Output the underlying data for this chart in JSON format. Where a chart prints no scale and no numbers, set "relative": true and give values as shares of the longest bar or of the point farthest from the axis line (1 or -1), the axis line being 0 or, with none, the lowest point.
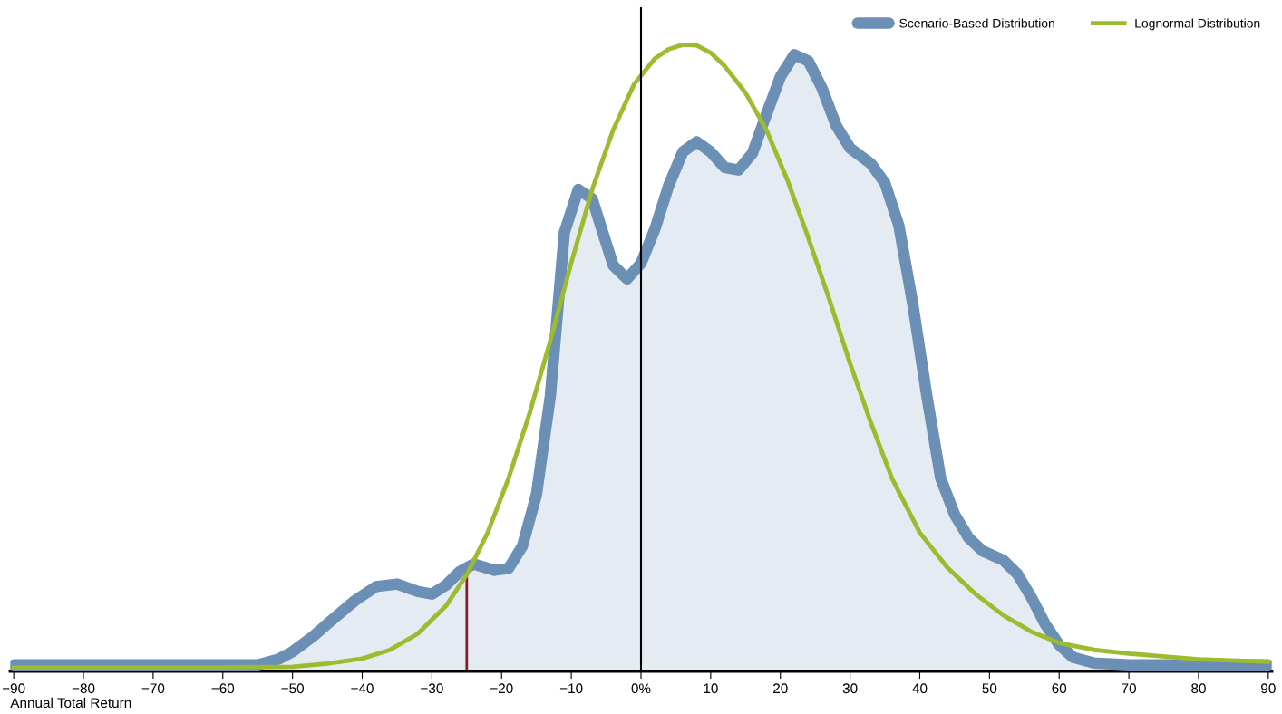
{
  "chart_data": {
    "type": "area",
    "relative": true,
    "xlabel": "Annual Total Return",
    "xlim": [
      -90.5,
      90.5
    ],
    "xticks": [
      {
        "value": -90,
        "label": "−90"
      },
      {
        "value": -80,
        "label": "−80"
      },
      {
        "value": -70,
        "label": "−70"
      },
      {
        "value": -60,
        "label": "−60"
      },
      {
        "value": -50,
        "label": "−50"
      },
      {
        "value": -40,
        "label": "−40"
      },
      {
        "value": -30,
        "label": "−30"
      },
      {
        "value": -20,
        "label": "−20"
      },
      {
        "value": -10,
        "label": "−10"
      },
      {
        "value": 0,
        "label": "0%"
      },
      10,
      20,
      30,
      40,
      50,
      60,
      70,
      80,
      90
    ],
    "grid": false,
    "legend": "top right",
    "ref_lines": [
      {
        "axis": "x",
        "value": 0,
        "color": "#000000"
      },
      {
        "axis": "x",
        "value": -25,
        "color": "#8b1a2e"
      }
    ],
    "series": [
      {
        "name": "Scenario-Based Distribution",
        "color": "#6b8fb5",
        "x": [
          -90,
          -55,
          -52,
          -50,
          -47,
          -44,
          -41,
          -38,
          -35,
          -32,
          -30,
          -28,
          -26,
          -24,
          -21,
          -19,
          -17,
          -15,
          -13,
          -11,
          -9,
          -7,
          -4,
          -2,
          0,
          2,
          4,
          6,
          8,
          10,
          12,
          14,
          16,
          18,
          20,
          22,
          24,
          26,
          28,
          30,
          33,
          35,
          37,
          39,
          41,
          43,
          45,
          47,
          49,
          52,
          54,
          56,
          58,
          60,
          62,
          65,
          70,
          90
        ],
        "values": [
          0.01,
          0.01,
          0.019,
          0.031,
          0.056,
          0.085,
          0.113,
          0.135,
          0.139,
          0.127,
          0.123,
          0.137,
          0.159,
          0.171,
          0.161,
          0.164,
          0.2,
          0.282,
          0.44,
          0.7,
          0.769,
          0.754,
          0.648,
          0.626,
          0.651,
          0.706,
          0.776,
          0.829,
          0.845,
          0.829,
          0.804,
          0.8,
          0.827,
          0.889,
          0.949,
          0.984,
          0.974,
          0.93,
          0.871,
          0.835,
          0.81,
          0.779,
          0.711,
          0.586,
          0.44,
          0.308,
          0.25,
          0.213,
          0.192,
          0.177,
          0.155,
          0.118,
          0.075,
          0.042,
          0.022,
          0.013,
          0.01,
          0.01
        ]
      },
      {
        "name": "Lognormal Distribution",
        "type": "line",
        "color": "#9dbb2f",
        "x": [
          -90,
          -60,
          -50,
          -45,
          -40,
          -36,
          -32,
          -28,
          -25,
          -22,
          -19,
          -16,
          -13,
          -10,
          -7,
          -4,
          -1,
          2,
          4,
          6,
          8,
          10,
          12,
          15,
          18,
          21,
          24,
          27,
          30,
          33,
          36,
          40,
          44,
          48,
          52,
          56,
          60,
          65,
          70,
          80,
          90
        ],
        "values": [
          0.006,
          0.006,
          0.007,
          0.012,
          0.02,
          0.034,
          0.06,
          0.104,
          0.154,
          0.221,
          0.308,
          0.411,
          0.528,
          0.652,
          0.769,
          0.864,
          0.937,
          0.978,
          0.993,
          1.0,
          0.999,
          0.987,
          0.966,
          0.923,
          0.864,
          0.784,
          0.692,
          0.594,
          0.491,
          0.396,
          0.308,
          0.221,
          0.165,
          0.123,
          0.089,
          0.063,
          0.045,
          0.034,
          0.028,
          0.019,
          0.015
        ]
      }
    ]
  }
}
